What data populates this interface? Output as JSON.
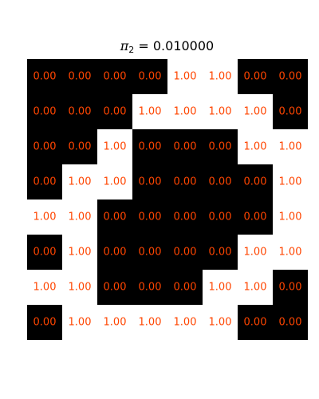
{
  "chart_data": {
    "type": "heatmap",
    "title_symbol": "π",
    "title_subscript": "2",
    "title_value": " = 0.010000",
    "grid_size": 8,
    "colormap": {
      "0": "#000000",
      "1": "#ffffff"
    },
    "label_color": "#ff4500",
    "values": [
      [
        0,
        0,
        0,
        0,
        1,
        1,
        0,
        0
      ],
      [
        0,
        0,
        0,
        1,
        1,
        1,
        1,
        0
      ],
      [
        0,
        0,
        1,
        0,
        0,
        0,
        1,
        1
      ],
      [
        0,
        1,
        1,
        0,
        0,
        0,
        0,
        1
      ],
      [
        1,
        1,
        0,
        0,
        0,
        0,
        0,
        1
      ],
      [
        0,
        1,
        0,
        0,
        0,
        0,
        1,
        1
      ],
      [
        1,
        1,
        0,
        0,
        0,
        1,
        1,
        0
      ],
      [
        0,
        1,
        1,
        1,
        1,
        1,
        0,
        0
      ]
    ],
    "labels": [
      [
        "0.00",
        "0.00",
        "0.00",
        "0.00",
        "1.00",
        "1.00",
        "0.00",
        "0.00"
      ],
      [
        "0.00",
        "0.00",
        "0.00",
        "1.00",
        "1.00",
        "1.00",
        "1.00",
        "0.00"
      ],
      [
        "0.00",
        "0.00",
        "1.00",
        "0.00",
        "0.00",
        "0.00",
        "1.00",
        "1.00"
      ],
      [
        "0.00",
        "1.00",
        "1.00",
        "0.00",
        "0.00",
        "0.00",
        "0.00",
        "1.00"
      ],
      [
        "1.00",
        "1.00",
        "0.00",
        "0.00",
        "0.00",
        "0.00",
        "0.00",
        "1.00"
      ],
      [
        "0.00",
        "1.00",
        "0.00",
        "0.00",
        "0.00",
        "0.00",
        "1.00",
        "1.00"
      ],
      [
        "1.00",
        "1.00",
        "0.00",
        "0.00",
        "0.00",
        "1.00",
        "1.00",
        "0.00"
      ],
      [
        "0.00",
        "1.00",
        "1.00",
        "1.00",
        "1.00",
        "1.00",
        "0.00",
        "0.00"
      ]
    ]
  }
}
